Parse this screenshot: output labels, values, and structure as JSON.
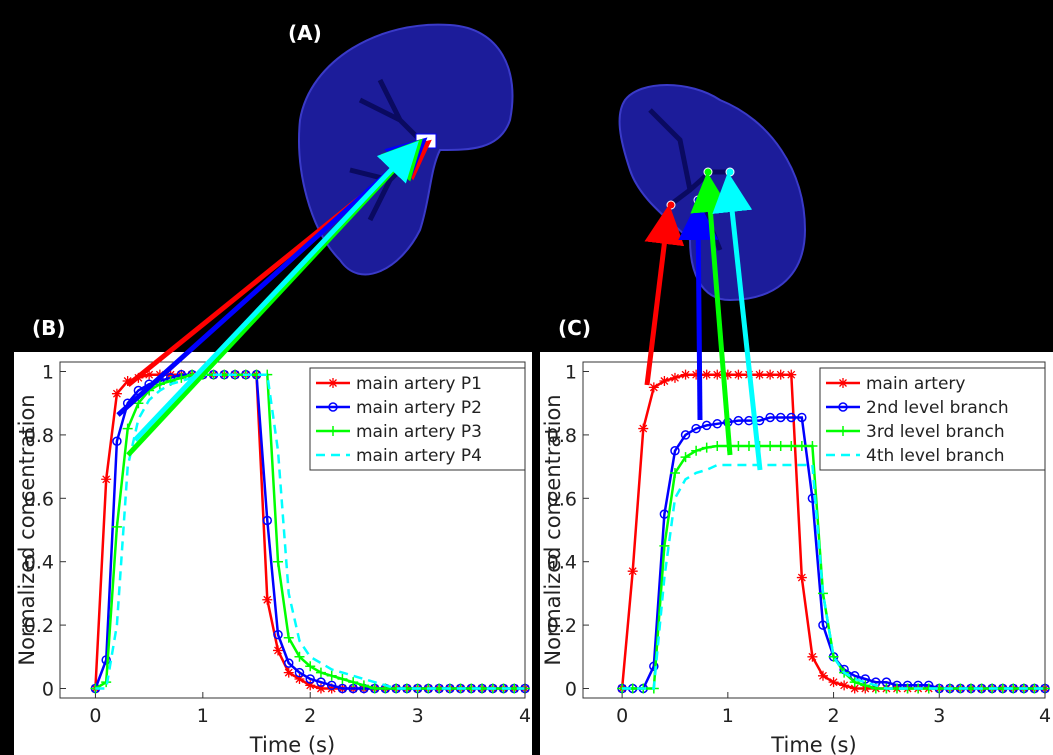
{
  "image_label": "(A)",
  "chart_data": [
    {
      "type": "line",
      "label": "(B)",
      "xlabel": "Time (s)",
      "ylabel": "Normalized concentration",
      "xlim": [
        -0.33,
        4
      ],
      "ylim": [
        -0.03,
        1.03
      ],
      "xticks": [
        0,
        1,
        2,
        3,
        4
      ],
      "yticks": [
        0,
        0.2,
        0.4,
        0.6,
        0.8,
        1
      ],
      "legend": "upper right",
      "x": [
        0,
        0.1,
        0.2,
        0.3,
        0.4,
        0.5,
        0.6,
        0.7,
        0.8,
        0.9,
        1,
        1.1,
        1.2,
        1.3,
        1.4,
        1.5,
        1.6,
        1.7,
        1.8,
        1.9,
        2,
        2.1,
        2.2,
        2.3,
        2.4,
        2.5,
        2.6,
        2.7,
        2.8,
        2.9,
        3,
        3.1,
        3.2,
        3.3,
        3.4,
        3.5,
        3.6,
        3.7,
        3.8,
        3.9,
        4
      ],
      "series": [
        {
          "name": "main artery P1",
          "color": "#ff0000",
          "marker": "star",
          "line_style": "solid",
          "values": [
            0,
            0.66,
            0.93,
            0.97,
            0.98,
            0.99,
            0.99,
            0.99,
            0.99,
            0.99,
            0.99,
            0.99,
            0.99,
            0.99,
            0.99,
            0.99,
            0.28,
            0.12,
            0.05,
            0.03,
            0.01,
            0,
            0,
            0,
            0,
            0,
            0,
            0,
            0,
            0,
            0,
            0,
            0,
            0,
            0,
            0,
            0,
            0,
            0,
            0,
            0
          ]
        },
        {
          "name": "main artery P2",
          "color": "#0000ff",
          "marker": "circle",
          "line_style": "solid",
          "values": [
            0,
            0.09,
            0.78,
            0.9,
            0.94,
            0.96,
            0.97,
            0.98,
            0.99,
            0.99,
            0.99,
            0.99,
            0.99,
            0.99,
            0.99,
            0.99,
            0.53,
            0.17,
            0.08,
            0.05,
            0.03,
            0.02,
            0.01,
            0,
            0,
            0,
            0,
            0,
            0,
            0,
            0,
            0,
            0,
            0,
            0,
            0,
            0,
            0,
            0,
            0,
            0
          ]
        },
        {
          "name": "main artery P3",
          "color": "#00ff00",
          "marker": "plus",
          "line_style": "solid",
          "values": [
            0,
            0.02,
            0.51,
            0.82,
            0.9,
            0.94,
            0.96,
            0.97,
            0.98,
            0.99,
            0.99,
            0.99,
            0.99,
            0.99,
            0.99,
            0.99,
            0.99,
            0.4,
            0.16,
            0.1,
            0.07,
            0.05,
            0.04,
            0.03,
            0.02,
            0.01,
            0,
            0,
            0,
            0,
            0,
            0,
            0,
            0,
            0,
            0,
            0,
            0,
            0,
            0,
            0
          ]
        },
        {
          "name": "main artery P4",
          "color": "#00ffff",
          "marker": "none",
          "line_style": "dashed",
          "values": [
            0,
            0,
            0.2,
            0.7,
            0.85,
            0.91,
            0.94,
            0.96,
            0.97,
            0.98,
            0.99,
            0.99,
            0.99,
            0.99,
            0.99,
            0.99,
            0.99,
            0.75,
            0.3,
            0.15,
            0.1,
            0.08,
            0.06,
            0.05,
            0.04,
            0.03,
            0.02,
            0.01,
            0,
            0,
            0,
            0,
            0,
            0,
            0,
            0,
            0,
            0,
            0,
            0,
            0
          ]
        }
      ]
    },
    {
      "type": "line",
      "label": "(C)",
      "xlabel": "Time (s)",
      "ylabel": "Normalized concentration",
      "xlim": [
        -0.37,
        4
      ],
      "ylim": [
        -0.03,
        1.03
      ],
      "xticks": [
        0,
        1,
        2,
        3,
        4
      ],
      "yticks": [
        0,
        0.2,
        0.4,
        0.6,
        0.8,
        1
      ],
      "legend": "upper right",
      "x": [
        0,
        0.1,
        0.2,
        0.3,
        0.4,
        0.5,
        0.6,
        0.7,
        0.8,
        0.9,
        1,
        1.1,
        1.2,
        1.3,
        1.4,
        1.5,
        1.6,
        1.7,
        1.8,
        1.9,
        2,
        2.1,
        2.2,
        2.3,
        2.4,
        2.5,
        2.6,
        2.7,
        2.8,
        2.9,
        3,
        3.1,
        3.2,
        3.3,
        3.4,
        3.5,
        3.6,
        3.7,
        3.8,
        3.9,
        4
      ],
      "series": [
        {
          "name": "main artery",
          "color": "#ff0000",
          "marker": "star",
          "line_style": "solid",
          "values": [
            0,
            0.37,
            0.82,
            0.95,
            0.97,
            0.98,
            0.99,
            0.99,
            0.99,
            0.99,
            0.99,
            0.99,
            0.99,
            0.99,
            0.99,
            0.99,
            0.99,
            0.35,
            0.1,
            0.04,
            0.02,
            0.01,
            0,
            0,
            0,
            0,
            0,
            0,
            0,
            0,
            0,
            0,
            0,
            0,
            0,
            0,
            0,
            0,
            0,
            0,
            0
          ]
        },
        {
          "name": "2nd level branch",
          "color": "#0000ff",
          "marker": "circle",
          "line_style": "solid",
          "values": [
            0,
            0,
            0,
            0.07,
            0.55,
            0.75,
            0.8,
            0.82,
            0.83,
            0.835,
            0.84,
            0.845,
            0.845,
            0.845,
            0.855,
            0.855,
            0.855,
            0.855,
            0.6,
            0.2,
            0.1,
            0.06,
            0.04,
            0.03,
            0.02,
            0.02,
            0.01,
            0.01,
            0.01,
            0.01,
            0,
            0,
            0,
            0,
            0,
            0,
            0,
            0,
            0,
            0,
            0
          ]
        },
        {
          "name": "3rd level branch",
          "color": "#00ff00",
          "marker": "plus",
          "line_style": "solid",
          "values": [
            0,
            0,
            0,
            0,
            0.45,
            0.68,
            0.73,
            0.75,
            0.76,
            0.765,
            0.765,
            0.765,
            0.765,
            0.765,
            0.765,
            0.765,
            0.765,
            0.765,
            0.765,
            0.3,
            0.1,
            0.05,
            0.02,
            0.01,
            0,
            0,
            0,
            0,
            0,
            0,
            0,
            0,
            0,
            0,
            0,
            0,
            0,
            0,
            0,
            0,
            0
          ]
        },
        {
          "name": "4th level branch",
          "color": "#00ffff",
          "marker": "none",
          "line_style": "dashed",
          "values": [
            0,
            0,
            0,
            0,
            0.35,
            0.6,
            0.66,
            0.68,
            0.69,
            0.705,
            0.705,
            0.705,
            0.705,
            0.705,
            0.705,
            0.705,
            0.705,
            0.705,
            0.705,
            0.3,
            0.1,
            0.05,
            0.03,
            0.02,
            0.01,
            0,
            0,
            0,
            0,
            0,
            0,
            0,
            0,
            0,
            0,
            0,
            0,
            0,
            0,
            0,
            0
          ]
        }
      ]
    }
  ]
}
